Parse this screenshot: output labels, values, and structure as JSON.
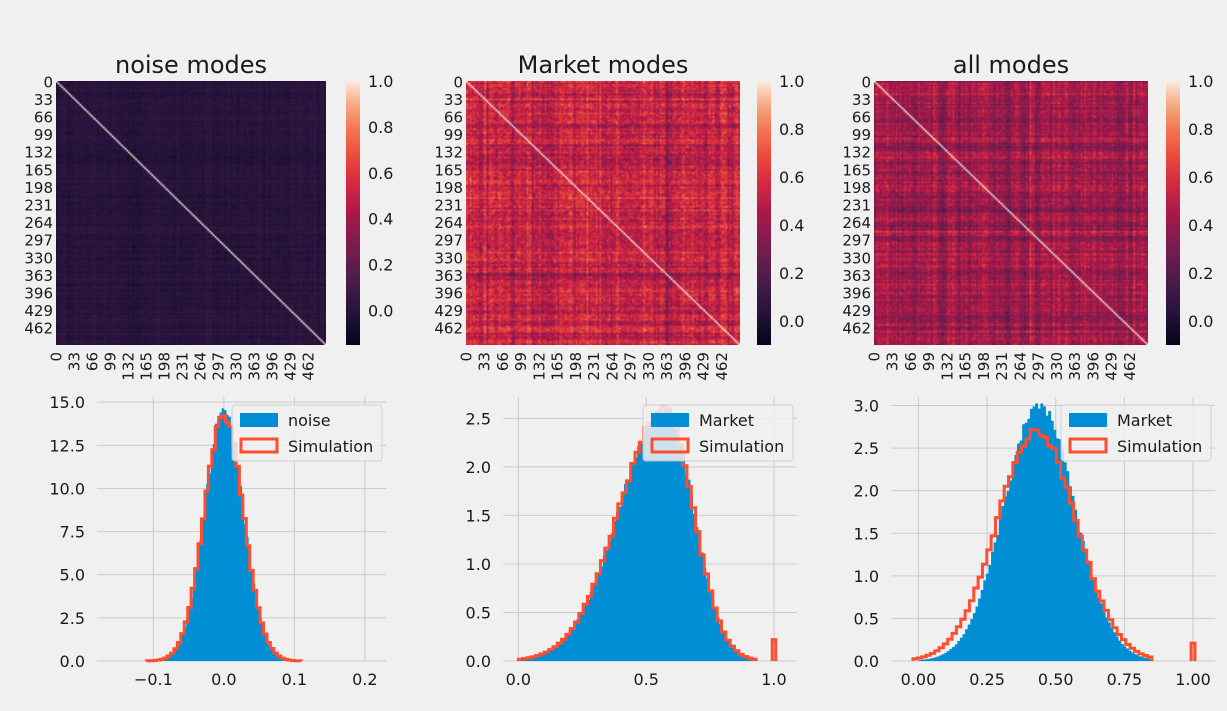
{
  "chart_data": [
    {
      "type": "heatmap",
      "title": "noise modes",
      "tick_labels": [
        "0",
        "33",
        "66",
        "99",
        "132",
        "165",
        "198",
        "231",
        "264",
        "297",
        "330",
        "363",
        "396",
        "429",
        "462"
      ],
      "n": 495,
      "value_range": [
        -0.15,
        1.0
      ],
      "off_diagonal_mean": 0.0,
      "off_diagonal_spread": 0.04,
      "colorbar_ticks": [
        "0.0",
        "0.2",
        "0.4",
        "0.6",
        "0.8",
        "1.0"
      ],
      "colorbar_values": [
        0.0,
        0.2,
        0.4,
        0.6,
        0.8,
        1.0
      ]
    },
    {
      "type": "heatmap",
      "title": "Market modes",
      "tick_labels": [
        "0",
        "33",
        "66",
        "99",
        "132",
        "165",
        "198",
        "231",
        "264",
        "297",
        "330",
        "363",
        "396",
        "429",
        "462"
      ],
      "n": 495,
      "value_range": [
        -0.1,
        1.0
      ],
      "off_diagonal_mean": 0.52,
      "off_diagonal_spread": 0.16,
      "colorbar_ticks": [
        "0.0",
        "0.2",
        "0.4",
        "0.6",
        "0.8",
        "1.0"
      ],
      "colorbar_values": [
        0.0,
        0.2,
        0.4,
        0.6,
        0.8,
        1.0
      ]
    },
    {
      "type": "heatmap",
      "title": "all modes",
      "tick_labels": [
        "0",
        "33",
        "66",
        "99",
        "132",
        "165",
        "198",
        "231",
        "264",
        "297",
        "330",
        "363",
        "396",
        "429",
        "462"
      ],
      "n": 495,
      "value_range": [
        -0.1,
        1.0
      ],
      "off_diagonal_mean": 0.42,
      "off_diagonal_spread": 0.13,
      "colorbar_ticks": [
        "0.0",
        "0.2",
        "0.4",
        "0.6",
        "0.8",
        "1.0"
      ],
      "colorbar_values": [
        0.0,
        0.2,
        0.4,
        0.6,
        0.8,
        1.0
      ]
    },
    {
      "type": "histogram",
      "xlim": [
        -0.18,
        0.23
      ],
      "ylim": [
        0,
        15.3
      ],
      "xticks": [
        -0.1,
        0.0,
        0.1,
        0.2
      ],
      "xtick_labels": [
        "−0.1",
        "0.0",
        "0.1",
        "0.2"
      ],
      "yticks": [
        0,
        2.5,
        5.0,
        7.5,
        10.0,
        12.5,
        15.0
      ],
      "ytick_labels": [
        "0.0",
        "2.5",
        "5.0",
        "7.5",
        "10.0",
        "12.5",
        "15.0"
      ],
      "legend_position": "top-right",
      "series": [
        {
          "name": "noise",
          "kind": "filled",
          "color": "#008fd5",
          "mean": 0.0,
          "sd": 0.0275,
          "peak": 14.6,
          "range": [
            -0.11,
            0.11
          ],
          "bins": 70
        },
        {
          "name": "Simulation",
          "kind": "step",
          "color": "#fc4f30",
          "mean": 0.0,
          "sd": 0.028,
          "peak": 14.2,
          "range": [
            -0.11,
            0.11
          ],
          "bins": 45
        }
      ]
    },
    {
      "type": "histogram",
      "xlim": [
        -0.06,
        1.09
      ],
      "ylim": [
        0,
        2.72
      ],
      "xticks": [
        0.0,
        0.5,
        1.0
      ],
      "xtick_labels": [
        "0.0",
        "0.5",
        "1.0"
      ],
      "yticks": [
        0,
        0.5,
        1.0,
        1.5,
        2.0,
        2.5
      ],
      "ytick_labels": [
        "0.0",
        "0.5",
        "1.0",
        "1.5",
        "2.0",
        "2.5"
      ],
      "legend_position": "top-right",
      "series": [
        {
          "name": "Market",
          "kind": "filled",
          "color": "#008fd5",
          "mean": 0.575,
          "sd_left": 0.18,
          "sd_right": 0.11,
          "peak": 2.6,
          "range": [
            0.0,
            0.93
          ],
          "bins": 90
        },
        {
          "name": "Simulation",
          "kind": "step",
          "color": "#fc4f30",
          "mean": 0.575,
          "sd_left": 0.18,
          "sd_right": 0.11,
          "peak": 2.6,
          "range": [
            0.0,
            0.93
          ],
          "bins": 55,
          "spike_x": 1.0,
          "spike_height": 0.22
        }
      ]
    },
    {
      "type": "histogram",
      "xlim": [
        -0.1,
        1.08
      ],
      "ylim": [
        0,
        3.1
      ],
      "xticks": [
        0.0,
        0.25,
        0.5,
        0.75,
        1.0
      ],
      "xtick_labels": [
        "0.00",
        "0.25",
        "0.50",
        "0.75",
        "1.00"
      ],
      "yticks": [
        0,
        0.5,
        1.0,
        1.5,
        2.0,
        2.5,
        3.0
      ],
      "ytick_labels": [
        "0.0",
        "0.5",
        "1.0",
        "1.5",
        "2.0",
        "2.5",
        "3.0"
      ],
      "legend_position": "top-right",
      "series": [
        {
          "name": "Market",
          "kind": "filled",
          "color": "#008fd5",
          "mean": 0.44,
          "sd": 0.13,
          "peak": 3.0,
          "range": [
            0.0,
            0.85
          ],
          "bins": 90
        },
        {
          "name": "Simulation",
          "kind": "step",
          "color": "#fc4f30",
          "mean": 0.43,
          "sd": 0.145,
          "peak": 2.7,
          "range": [
            -0.02,
            0.85
          ],
          "bins": 55,
          "spike_x": 1.0,
          "spike_height": 0.21
        }
      ]
    }
  ]
}
